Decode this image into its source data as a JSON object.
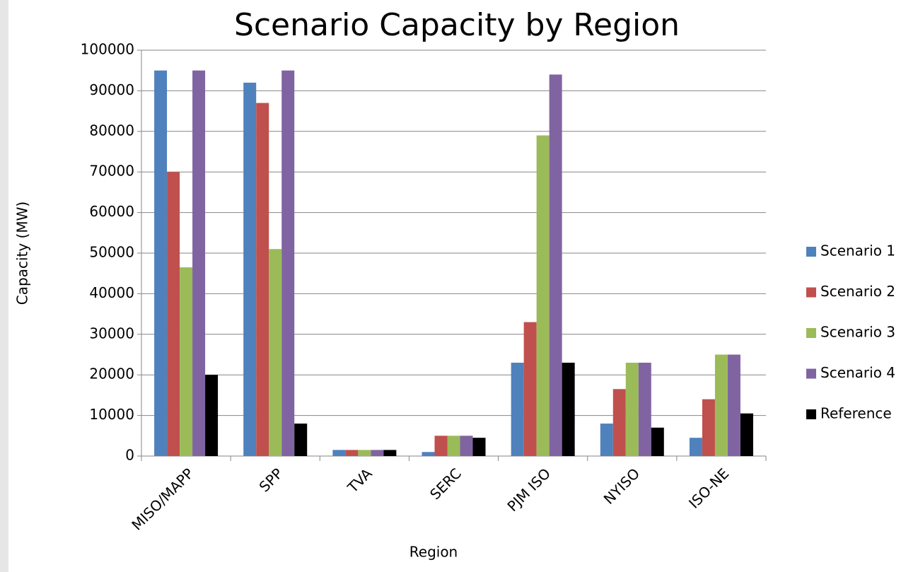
{
  "chart_data": {
    "type": "bar",
    "title": "Scenario Capacity by Region",
    "x_label": "Region",
    "y_label": "Capacity (MW)",
    "categories": [
      "MISO/MAPP",
      "SPP",
      "TVA",
      "SERC",
      "PJM ISO",
      "NYISO",
      "ISO-NE"
    ],
    "series": [
      {
        "name": "Scenario 1",
        "color": "#4f81bd",
        "values": [
          95000,
          92000,
          1500,
          1000,
          23000,
          8000,
          4500
        ]
      },
      {
        "name": "Scenario 2",
        "color": "#c0504d",
        "values": [
          70000,
          87000,
          1500,
          5000,
          33000,
          16500,
          14000
        ]
      },
      {
        "name": "Scenario 3",
        "color": "#9bbb59",
        "values": [
          46500,
          51000,
          1500,
          5000,
          79000,
          23000,
          25000
        ]
      },
      {
        "name": "Scenario 4",
        "color": "#8064a2",
        "values": [
          95000,
          95000,
          1500,
          5000,
          94000,
          23000,
          25000
        ]
      },
      {
        "name": "Reference",
        "color": "#000000",
        "values": [
          20000,
          8000,
          1500,
          4500,
          23000,
          7000,
          10500
        ]
      }
    ],
    "ylim": [
      0,
      100000
    ],
    "yticks": [
      0,
      10000,
      20000,
      30000,
      40000,
      50000,
      60000,
      70000,
      80000,
      90000,
      100000
    ],
    "grid": true,
    "legend": "right"
  }
}
